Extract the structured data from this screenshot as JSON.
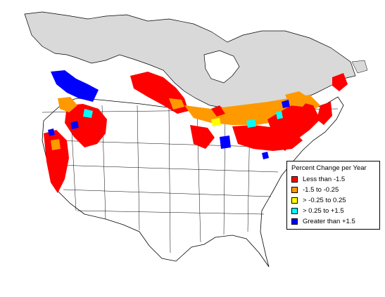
{
  "legend": {
    "title": "Percent Change per Year",
    "items": [
      {
        "label": "Less than -1.5",
        "color": "#ff0000"
      },
      {
        "label": "-1.5 to -0.25",
        "color": "#ff9900"
      },
      {
        "label": "> -0.25 to 0.25",
        "color": "#ffff00"
      },
      {
        "label": "> 0.25 to +1.5",
        "color": "#00ffff"
      },
      {
        "label": "Greater than +1.5",
        "color": "#0000ff"
      }
    ]
  },
  "colors": {
    "unsurveyed": "#d9d9d9",
    "land": "#ffffff",
    "boundaries": "#000000"
  }
}
